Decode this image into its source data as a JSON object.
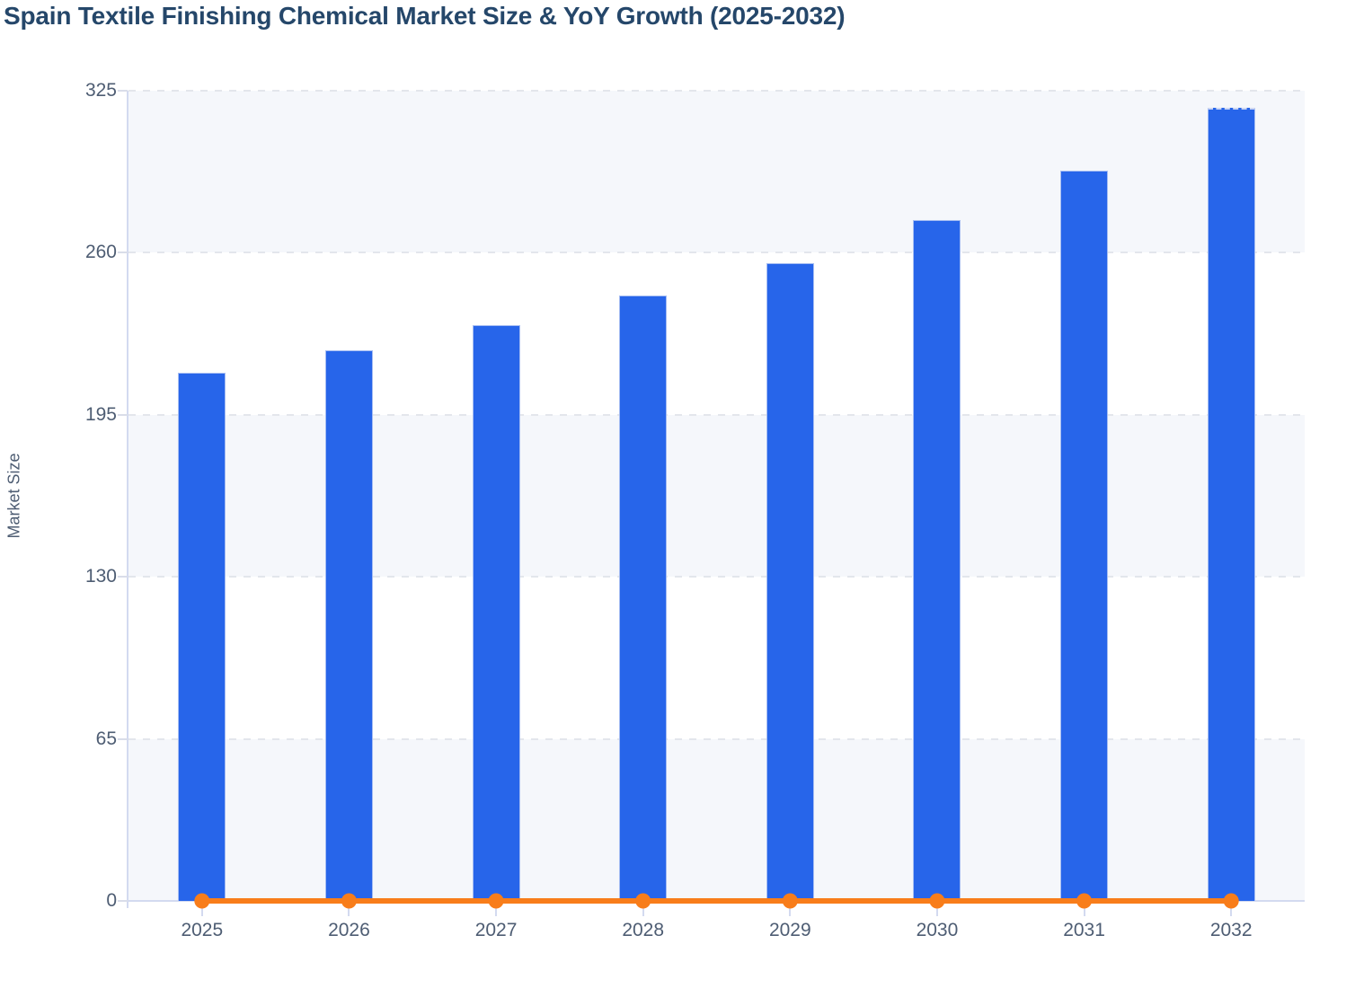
{
  "chart_data": {
    "type": "bar",
    "title": "Spain Textile Finishing Chemical Market Size & YoY Growth (2025-2032)",
    "xlabel": "",
    "ylabel": "Market Size",
    "categories": [
      "2025",
      "2026",
      "2027",
      "2028",
      "2029",
      "2030",
      "2031",
      "2032"
    ],
    "series": [
      {
        "name": "Market Size",
        "type": "bar",
        "values": [
          212,
          221,
          231,
          243,
          256,
          273,
          293,
          318
        ]
      },
      {
        "name": "YoY Growth",
        "type": "line",
        "values": [
          0,
          0,
          0,
          0,
          0,
          0,
          0,
          0
        ]
      }
    ],
    "ylim": [
      0,
      325
    ],
    "yticks": [
      0,
      65,
      130,
      195,
      260,
      325
    ],
    "grid": {
      "horizontal": "dashed",
      "vertical": "none",
      "row_bands": "alternating"
    },
    "legend": "none"
  },
  "colors": {
    "bar": "#2765ea",
    "bar_edge": "#a6bdf2",
    "line": "#f87d1a",
    "grid": "#e3e6ec",
    "axis": "#d3daf0",
    "tick": "#d9dde9",
    "band": "#f5f7fb",
    "title_text": "#25476a",
    "axis_text": "#4e5d73"
  }
}
